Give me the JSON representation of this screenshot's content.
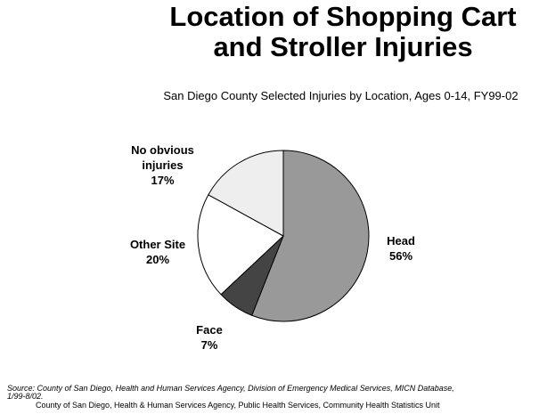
{
  "chart_data": {
    "type": "pie",
    "title": "Location of Shopping Cart and Stroller Injuries",
    "subtitle": "San Diego County Selected Injuries by Location, Ages 0-14, FY99-02",
    "categories": [
      "Head",
      "Face",
      "Other Site",
      "No obvious injuries"
    ],
    "values": [
      56,
      7,
      20,
      17
    ],
    "value_labels": [
      "56%",
      "7%",
      "20%",
      "17%"
    ],
    "colors": [
      "#999999",
      "#444444",
      "#ffffff",
      "#eeeeee"
    ],
    "source": "Source: County of San Diego, Health and Human Services Agency, Division of Emergency Medical Services, MICN Database, 1/99-8/02.",
    "footer": "County of San Diego, Health & Human Services Agency, Public Health Services, Community Health Statistics Unit"
  }
}
